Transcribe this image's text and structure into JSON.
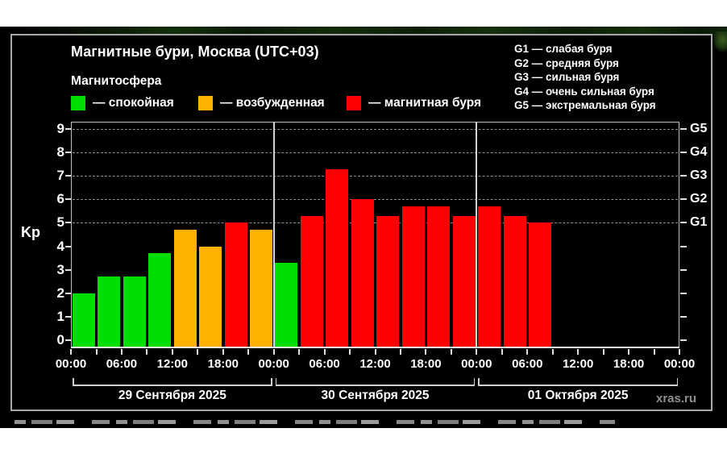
{
  "header": {
    "title": "Магнитные бури, Москва (UTC+03)",
    "subtitle": "Магнитосфера"
  },
  "legend": {
    "items": [
      {
        "key": "quiet",
        "label": "— спокойная",
        "color": "#00dd00"
      },
      {
        "key": "excited",
        "label": "— возбужденная",
        "color": "#ffb300"
      },
      {
        "key": "storm",
        "label": "— магнитная буря",
        "color": "#ff0000"
      }
    ]
  },
  "storm_scale": {
    "lines": [
      "G1 — слабая буря",
      "G2 — средняя буря",
      "G3 — сильная буря",
      "G4 — очень сильная буря",
      "G5 — экстремальная буря"
    ]
  },
  "watermark": "xras.ru",
  "chart_data": {
    "type": "bar",
    "title": "Магнитные бури, Москва (UTC+03)",
    "ylabel": "Kp",
    "ylim": [
      0,
      9.5
    ],
    "yticks": [
      0,
      1,
      2,
      3,
      4,
      5,
      6,
      7,
      8,
      9
    ],
    "gridline_values": [
      5,
      6,
      7,
      8,
      9
    ],
    "grid": "dashed horizontal, behind bars",
    "right_axis": {
      "values": [
        5,
        6,
        7,
        8,
        9
      ],
      "labels": [
        "G1",
        "G2",
        "G3",
        "G4",
        "G5"
      ]
    },
    "hours_per_bar": 3,
    "x_tick_labels": [
      "00:00",
      "06:00",
      "12:00",
      "18:00",
      "00:00",
      "06:00",
      "12:00",
      "18:00",
      "00:00",
      "06:00",
      "12:00",
      "18:00",
      "00:00"
    ],
    "legend_position": "top-left",
    "level_colors": {
      "quiet": "#00dd00",
      "excited": "#ffb300",
      "storm": "#ff0000"
    },
    "days": [
      {
        "date": "29 Сентября 2025",
        "kp": [
          2.0,
          2.7,
          2.7,
          3.7,
          4.7,
          4.0,
          5.0,
          4.7
        ],
        "levels": [
          "quiet",
          "quiet",
          "quiet",
          "quiet",
          "excited",
          "excited",
          "storm",
          "excited"
        ]
      },
      {
        "date": "30 Сентября 2025",
        "kp": [
          3.3,
          5.3,
          7.3,
          6.0,
          5.3,
          5.7,
          5.7,
          5.3
        ],
        "levels": [
          "quiet",
          "storm",
          "storm",
          "storm",
          "storm",
          "storm",
          "storm",
          "storm"
        ]
      },
      {
        "date": "01 Октября 2025",
        "kp": [
          5.7,
          5.3,
          5.0,
          null,
          null,
          null,
          null,
          null
        ],
        "levels": [
          "storm",
          "storm",
          "storm",
          null,
          null,
          null,
          null,
          null
        ]
      }
    ]
  }
}
